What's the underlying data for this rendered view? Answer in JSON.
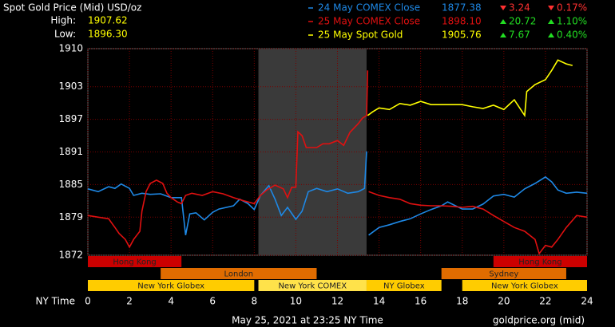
{
  "chart_data": {
    "type": "line",
    "title": "Spot Gold Price (Mid) USD/oz",
    "stats": [
      {
        "label": "High:",
        "value": "1907.62"
      },
      {
        "label": "Low:",
        "value": "1896.30"
      }
    ],
    "xlabel": "NY Time",
    "xlim": [
      0,
      24
    ],
    "xticks": [
      0,
      2,
      4,
      6,
      8,
      10,
      12,
      14,
      16,
      18,
      20,
      22,
      24
    ],
    "ylim": [
      1872,
      1910
    ],
    "yticks": [
      1910,
      1903,
      1897,
      1891,
      1885,
      1879,
      1872
    ],
    "grid": true,
    "shaded_region": [
      8.2,
      13.4
    ],
    "series": [
      {
        "name": "24 May COMEX Close",
        "color": "#1e88e5",
        "close": "1877.38",
        "change": "3.24",
        "change_pct": "0.17%",
        "direction": "down",
        "x": [
          0,
          0.5,
          1,
          1.3,
          1.6,
          2,
          2.2,
          2.6,
          3,
          3.5,
          4,
          4.5,
          4.7,
          4.9,
          5.2,
          5.6,
          6,
          6.3,
          7,
          7.3,
          7.7,
          8,
          8.3,
          8.7,
          9,
          9.3,
          9.6,
          10,
          10.3,
          10.6,
          11,
          11.5,
          12,
          12.5,
          13,
          13.3,
          13.4,
          null,
          13.5,
          14,
          14.5,
          15,
          15.5,
          16,
          16.5,
          17,
          17.3,
          18,
          18.5,
          19,
          19.5,
          20,
          20.5,
          21,
          21.5,
          22,
          22.3,
          22.6,
          23,
          23.5,
          24
        ],
        "values": [
          1884.2,
          1883.7,
          1884.6,
          1884.3,
          1885.1,
          1884.3,
          1883.0,
          1883.4,
          1883.2,
          1883.3,
          1882.6,
          1882.6,
          1875.7,
          1879.6,
          1879.8,
          1878.5,
          1879.9,
          1880.5,
          1881.1,
          1882.3,
          1881.5,
          1880.4,
          1883.0,
          1884.8,
          1882.3,
          1879.3,
          1880.8,
          1878.6,
          1880.1,
          1883.7,
          1884.3,
          1883.7,
          1884.2,
          1883.4,
          1883.7,
          1884.3,
          1891.1,
          null,
          1875.7,
          1877.1,
          1877.6,
          1878.2,
          1878.7,
          1879.6,
          1880.4,
          1881.1,
          1881.8,
          1880.5,
          1880.5,
          1881.4,
          1882.9,
          1883.2,
          1882.7,
          1884.2,
          1885.2,
          1886.4,
          1885.5,
          1884.0,
          1883.4,
          1883.6,
          1883.4
        ]
      },
      {
        "name": "25 May COMEX Close",
        "color": "#e01010",
        "close": "1898.10",
        "change": "20.72",
        "change_pct": "1.10%",
        "direction": "up",
        "x": [
          0,
          0.5,
          1,
          1.3,
          1.5,
          1.8,
          2,
          2.2,
          2.5,
          2.6,
          2.8,
          3,
          3.3,
          3.6,
          3.8,
          4,
          4.3,
          4.5,
          4.7,
          5,
          5.5,
          6,
          6.5,
          7,
          7.5,
          8,
          8.3,
          8.6,
          9,
          9.4,
          9.6,
          9.8,
          10,
          10.1,
          10.3,
          10.5,
          11,
          11.3,
          11.6,
          12,
          12.3,
          12.6,
          13,
          13.2,
          13.4,
          13.45,
          null,
          13.5,
          14,
          14.5,
          15,
          15.5,
          16,
          16.5,
          17,
          17.5,
          18,
          18.5,
          19,
          19.5,
          20,
          20.5,
          21,
          21.5,
          21.7,
          22,
          22.3,
          22.6,
          23,
          23.5,
          24
        ],
        "values": [
          1879.3,
          1879.0,
          1878.7,
          1877.1,
          1876.0,
          1874.9,
          1873.5,
          1874.9,
          1876.4,
          1880.1,
          1883.7,
          1885.2,
          1885.8,
          1885.2,
          1883.4,
          1882.6,
          1881.8,
          1881.5,
          1883.0,
          1883.4,
          1883.0,
          1883.7,
          1883.3,
          1882.6,
          1882.0,
          1881.5,
          1883.0,
          1884.0,
          1884.9,
          1884.2,
          1882.6,
          1884.5,
          1884.5,
          1894.7,
          1894.0,
          1891.8,
          1891.8,
          1892.5,
          1892.5,
          1893.1,
          1892.2,
          1894.6,
          1896.2,
          1897.2,
          1897.7,
          1906.0,
          null,
          1883.7,
          1883.0,
          1882.6,
          1882.3,
          1881.5,
          1881.2,
          1881.1,
          1881.1,
          1881.0,
          1880.8,
          1881.0,
          1880.5,
          1879.3,
          1878.2,
          1877.1,
          1876.4,
          1874.9,
          1872.3,
          1873.8,
          1873.5,
          1874.9,
          1877.1,
          1879.3,
          1879.0
        ]
      },
      {
        "name": "25 May Spot Gold",
        "color": "#ffff00",
        "close": "1905.76",
        "change": "7.67",
        "change_pct": "0.40%",
        "direction": "up",
        "x": [
          13.45,
          13.7,
          14,
          14.5,
          15,
          15.5,
          16,
          16.5,
          17,
          17.5,
          18,
          18.5,
          19,
          19.5,
          20,
          20.5,
          21,
          21.1,
          21.5,
          22,
          22.3,
          22.6,
          23,
          23.3
        ],
        "values": [
          1897.7,
          1898.4,
          1899.1,
          1898.8,
          1899.9,
          1899.6,
          1900.3,
          1899.7,
          1899.7,
          1899.7,
          1899.7,
          1899.3,
          1899.0,
          1899.6,
          1898.8,
          1900.6,
          1897.7,
          1902.1,
          1903.4,
          1904.3,
          1906.0,
          1907.9,
          1907.2,
          1906.9
        ]
      }
    ],
    "session_rows": [
      [
        {
          "label": "Hong Kong",
          "start": 0,
          "end": 4.5,
          "color": "#cc0000"
        },
        {
          "label": "Hong Kong",
          "start": 19.5,
          "end": 24,
          "color": "#cc0000"
        }
      ],
      [
        {
          "label": "London",
          "start": 3.5,
          "end": 11,
          "color": "#e06c00"
        },
        {
          "label": "Sydney",
          "start": 17,
          "end": 23,
          "color": "#e06c00"
        }
      ],
      [
        {
          "label": "New York Globex",
          "start": 0,
          "end": 8,
          "color": "#ffcc00"
        },
        {
          "label": "New York COMEX",
          "start": 8.2,
          "end": 13.4,
          "color": "#ffe24a"
        },
        {
          "label": "NY Globex",
          "start": 13.4,
          "end": 17,
          "color": "#ffcc00"
        },
        {
          "label": "New York Globex",
          "start": 18,
          "end": 24,
          "color": "#ffcc00"
        }
      ]
    ],
    "footer": "May 25, 2021 at 23:25 NY Time",
    "source": "goldprice.org (mid)"
  }
}
